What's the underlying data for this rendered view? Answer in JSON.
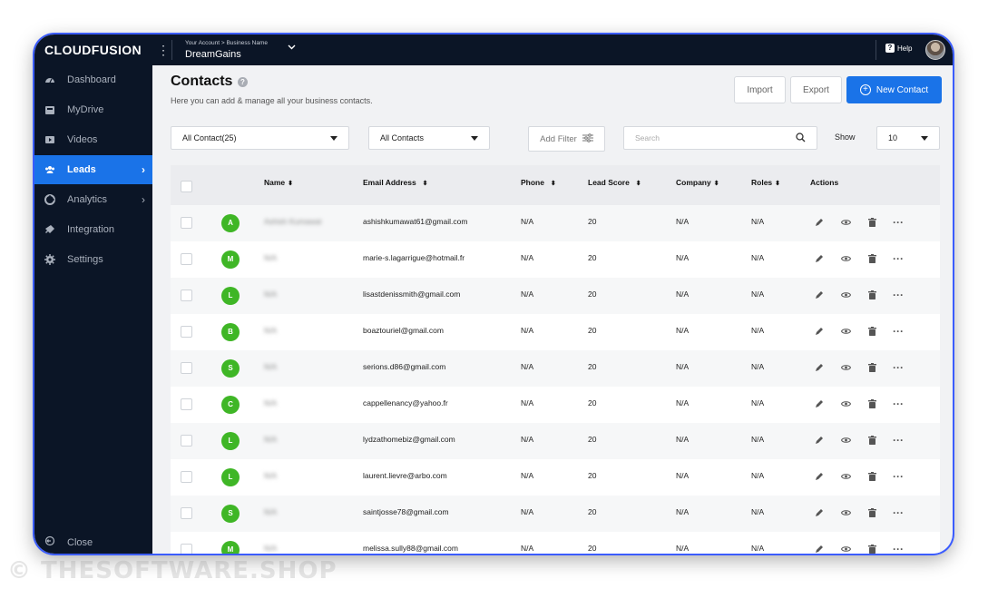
{
  "app": {
    "logo": "CLOUDFUSION",
    "breadcrumb": "Your Account > Business Name",
    "business_name": "DreamGains",
    "help_label": "Help",
    "help_glyph": "?"
  },
  "sidebar": {
    "items": [
      {
        "label": "Dashboard",
        "icon": "dashboard-icon"
      },
      {
        "label": "MyDrive",
        "icon": "drive-icon"
      },
      {
        "label": "Videos",
        "icon": "video-icon"
      },
      {
        "label": "Leads",
        "icon": "users-icon",
        "active": true,
        "arrow": true
      },
      {
        "label": "Analytics",
        "icon": "analytics-icon",
        "arrow": true
      },
      {
        "label": "Integration",
        "icon": "plug-icon"
      },
      {
        "label": "Settings",
        "icon": "gear-icon"
      }
    ],
    "close_label": "Close"
  },
  "page": {
    "title": "Contacts",
    "subtitle": "Here you can add & manage all your business contacts.",
    "import_label": "Import",
    "export_label": "Export",
    "new_contact_label": "New Contact"
  },
  "filters": {
    "contact_select": "All Contact(25)",
    "type_select": "All Contacts",
    "add_filter_label": "Add Filter",
    "search_placeholder": "Search",
    "show_label": "Show",
    "show_value": "10"
  },
  "table": {
    "columns": [
      "Name",
      "Email Address",
      "Phone",
      "Lead Score",
      "Company",
      "Roles",
      "Actions"
    ],
    "rows": [
      {
        "initial": "A",
        "name": "Ashish Kumawat",
        "email": "ashishkumawat61@gmail.com",
        "phone": "N/A",
        "score": "20",
        "company": "N/A",
        "roles": "N/A"
      },
      {
        "initial": "M",
        "name": "N/A",
        "email": "marie-s.lagarrigue@hotmail.fr",
        "phone": "N/A",
        "score": "20",
        "company": "N/A",
        "roles": "N/A"
      },
      {
        "initial": "L",
        "name": "N/A",
        "email": "lisastdenissmith@gmail.com",
        "phone": "N/A",
        "score": "20",
        "company": "N/A",
        "roles": "N/A"
      },
      {
        "initial": "B",
        "name": "N/A",
        "email": "boaztouriel@gmail.com",
        "phone": "N/A",
        "score": "20",
        "company": "N/A",
        "roles": "N/A"
      },
      {
        "initial": "S",
        "name": "N/A",
        "email": "serions.d86@gmail.com",
        "phone": "N/A",
        "score": "20",
        "company": "N/A",
        "roles": "N/A"
      },
      {
        "initial": "C",
        "name": "N/A",
        "email": "cappellenancy@yahoo.fr",
        "phone": "N/A",
        "score": "20",
        "company": "N/A",
        "roles": "N/A"
      },
      {
        "initial": "L",
        "name": "N/A",
        "email": "lydzathomebiz@gmail.com",
        "phone": "N/A",
        "score": "20",
        "company": "N/A",
        "roles": "N/A"
      },
      {
        "initial": "L",
        "name": "N/A",
        "email": "laurent.lievre@arbo.com",
        "phone": "N/A",
        "score": "20",
        "company": "N/A",
        "roles": "N/A"
      },
      {
        "initial": "S",
        "name": "N/A",
        "email": "saintjosse78@gmail.com",
        "phone": "N/A",
        "score": "20",
        "company": "N/A",
        "roles": "N/A"
      },
      {
        "initial": "M",
        "name": "N/A",
        "email": "melissa.sully88@gmail.com",
        "phone": "N/A",
        "score": "20",
        "company": "N/A",
        "roles": "N/A"
      }
    ]
  },
  "watermark": "© THESOFTWARE.SHOP",
  "colors": {
    "sidebar_bg": "#0b1526",
    "accent": "#1a73e8",
    "avatar_green": "#3fb626"
  }
}
